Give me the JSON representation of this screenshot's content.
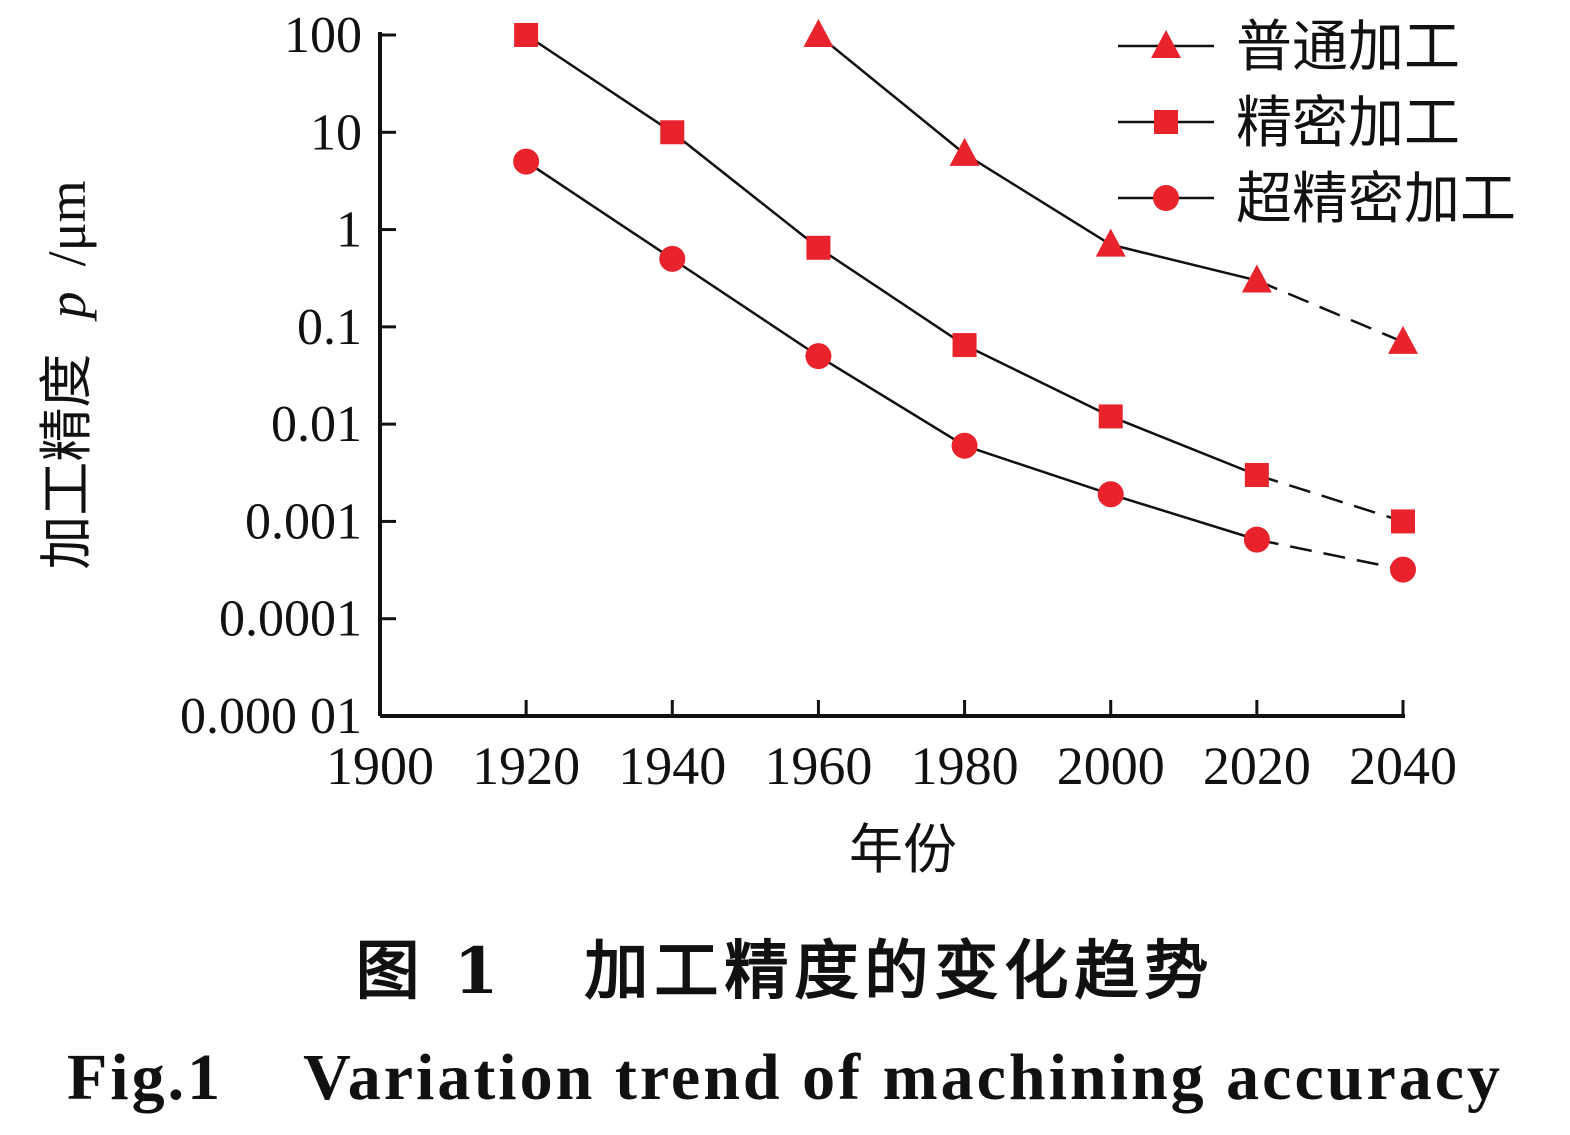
{
  "chart_data": {
    "type": "line",
    "xlabel": "年份",
    "ylabel_text": "加工精度",
    "ylabel_var": "p",
    "ylabel_unit": "/μm",
    "yscale": "log",
    "xlim": [
      1900,
      2040
    ],
    "ylim": [
      1e-05,
      100
    ],
    "x_ticks": [
      "1900",
      "1920",
      "1940",
      "1960",
      "1980",
      "2000",
      "2020",
      "2040"
    ],
    "y_ticks": [
      "0.000 01",
      "0.0001",
      "0.001",
      "0.01",
      "0.1",
      "1",
      "10",
      "100"
    ],
    "y_tick_values": [
      1e-05,
      0.0001,
      0.001,
      0.01,
      0.1,
      1,
      10,
      100
    ],
    "legend_position": "top-right",
    "series": [
      {
        "name": "普通加工",
        "marker": "triangle",
        "x": [
          1960,
          1980,
          2000,
          2020,
          2040
        ],
        "y": [
          100,
          6,
          0.7,
          0.3,
          0.07
        ],
        "dashed_from": 2020
      },
      {
        "name": "精密加工",
        "marker": "square",
        "x": [
          1920,
          1940,
          1960,
          1980,
          2000,
          2020,
          2040
        ],
        "y": [
          100,
          10,
          0.65,
          0.065,
          0.012,
          0.003,
          0.001
        ],
        "dashed_from": 2020
      },
      {
        "name": "超精密加工",
        "marker": "circle",
        "x": [
          1920,
          1940,
          1960,
          1980,
          2000,
          2020,
          2040
        ],
        "y": [
          5,
          0.5,
          0.05,
          0.006,
          0.0019,
          0.00065,
          0.00032
        ],
        "dashed_from": 2020
      }
    ],
    "colors": {
      "marker": "#e8232b",
      "line": "#111111"
    }
  },
  "caption": {
    "zh_label": "图 1",
    "zh_title": "加工精度的变化趋势",
    "en_label": "Fig.1",
    "en_title": "Variation trend of machining accuracy"
  }
}
